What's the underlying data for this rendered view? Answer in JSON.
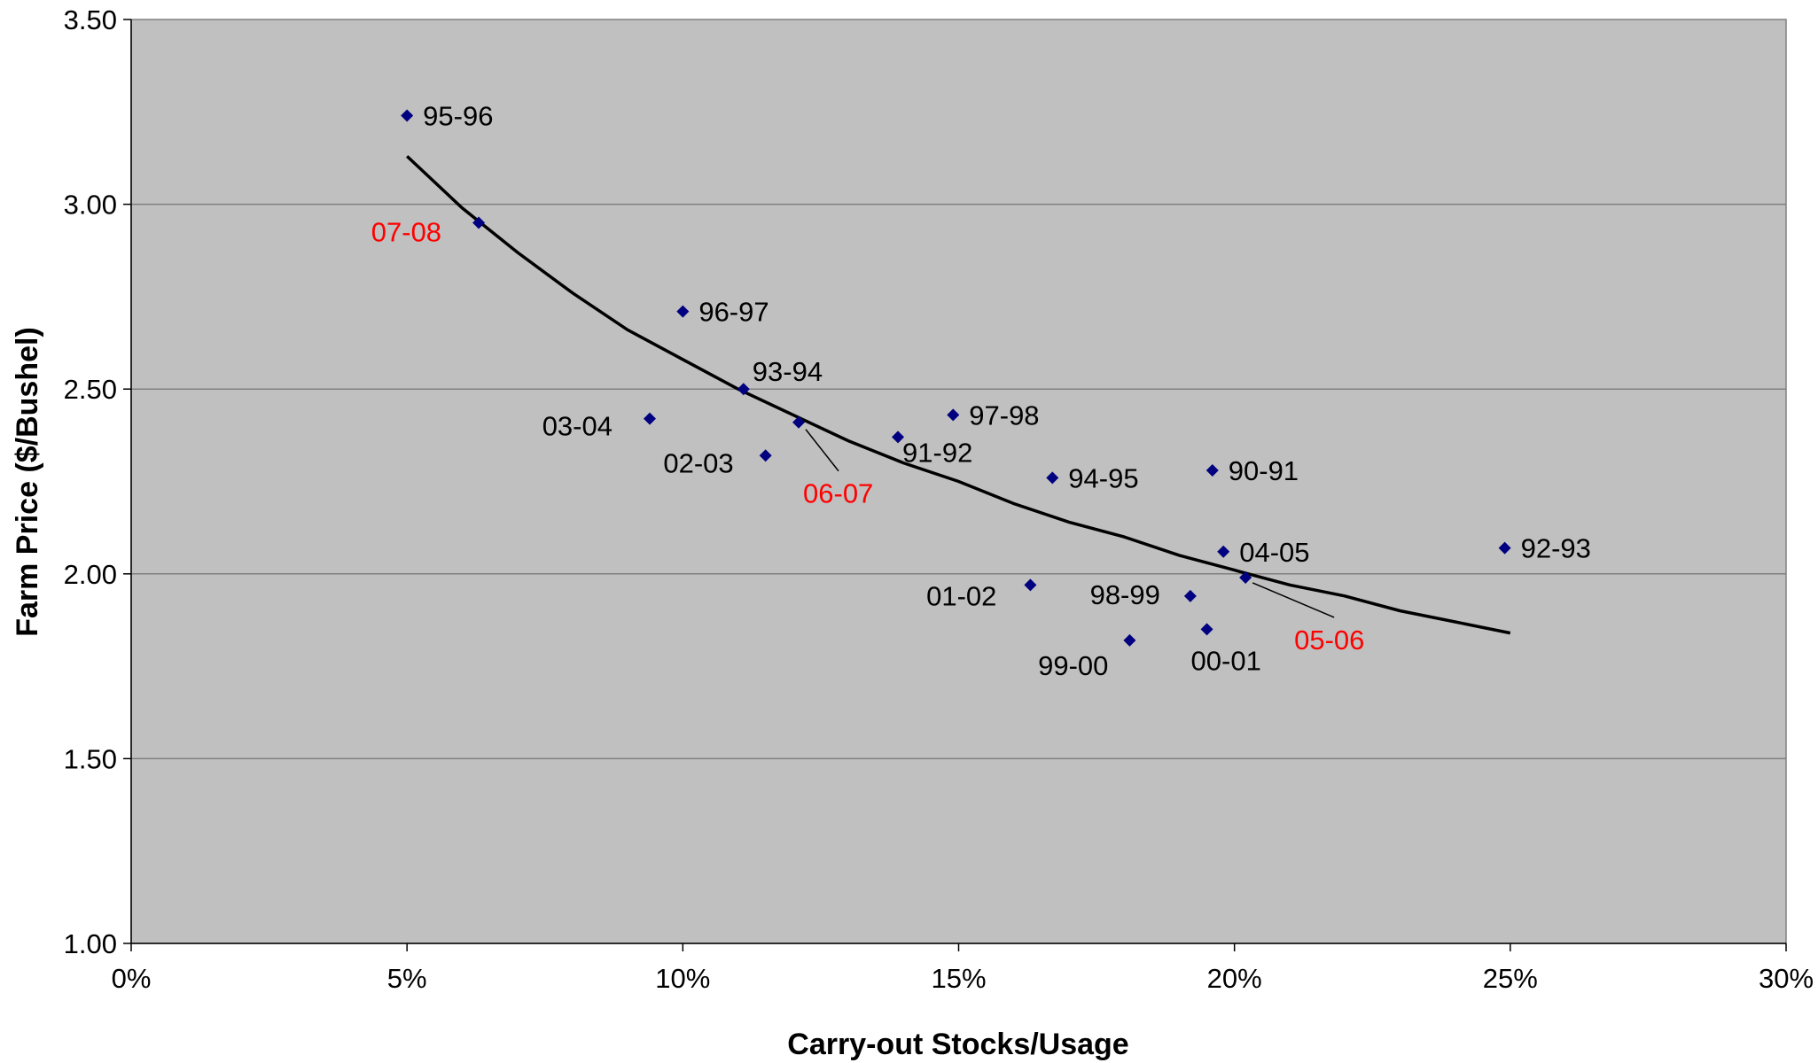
{
  "chart_data": {
    "type": "scatter",
    "title": "",
    "xlabel": "Carry-out Stocks/Usage",
    "ylabel": "Farm Price ($/Bushel)",
    "xlim": [
      0,
      30
    ],
    "ylim": [
      1.0,
      3.5
    ],
    "x_ticks": [
      {
        "value": 0,
        "label": "0%"
      },
      {
        "value": 5,
        "label": "5%"
      },
      {
        "value": 10,
        "label": "10%"
      },
      {
        "value": 15,
        "label": "15%"
      },
      {
        "value": 20,
        "label": "20%"
      },
      {
        "value": 25,
        "label": "25%"
      },
      {
        "value": 30,
        "label": "30%"
      }
    ],
    "y_ticks": [
      {
        "value": 1.0,
        "label": "1.00"
      },
      {
        "value": 1.5,
        "label": "1.50"
      },
      {
        "value": 2.0,
        "label": "2.00"
      },
      {
        "value": 2.5,
        "label": "2.50"
      },
      {
        "value": 3.0,
        "label": "3.00"
      },
      {
        "value": 3.5,
        "label": "3.50"
      }
    ],
    "grid": "horizontal",
    "plot_background": "#C0C0C0",
    "marker_color": "#000080",
    "trend_color": "#000000",
    "highlight_color": "#FF0000",
    "points": [
      {
        "label": "95-96",
        "x": 5.0,
        "y": 3.24,
        "highlight": false
      },
      {
        "label": "07-08",
        "x": 6.3,
        "y": 2.95,
        "highlight": true
      },
      {
        "label": "96-97",
        "x": 10.0,
        "y": 2.71,
        "highlight": false
      },
      {
        "label": "93-94",
        "x": 11.1,
        "y": 2.5,
        "highlight": false
      },
      {
        "label": "03-04",
        "x": 9.4,
        "y": 2.42,
        "highlight": false
      },
      {
        "label": "06-07",
        "x": 12.1,
        "y": 2.41,
        "highlight": true
      },
      {
        "label": "02-03",
        "x": 11.5,
        "y": 2.32,
        "highlight": false
      },
      {
        "label": "91-92",
        "x": 13.9,
        "y": 2.37,
        "highlight": false
      },
      {
        "label": "97-98",
        "x": 14.9,
        "y": 2.43,
        "highlight": false
      },
      {
        "label": "94-95",
        "x": 16.7,
        "y": 2.26,
        "highlight": false
      },
      {
        "label": "90-91",
        "x": 19.6,
        "y": 2.28,
        "highlight": false
      },
      {
        "label": "04-05",
        "x": 19.8,
        "y": 2.06,
        "highlight": false
      },
      {
        "label": "05-06",
        "x": 20.2,
        "y": 1.99,
        "highlight": true
      },
      {
        "label": "92-93",
        "x": 24.9,
        "y": 2.07,
        "highlight": false
      },
      {
        "label": "01-02",
        "x": 16.3,
        "y": 1.97,
        "highlight": false
      },
      {
        "label": "98-99",
        "x": 19.2,
        "y": 1.94,
        "highlight": false
      },
      {
        "label": "00-01",
        "x": 19.5,
        "y": 1.85,
        "highlight": false
      },
      {
        "label": "99-00",
        "x": 18.1,
        "y": 1.82,
        "highlight": false
      }
    ],
    "trendline": {
      "x": [
        5.0,
        6.0,
        7.0,
        8.0,
        9.0,
        10.0,
        11.0,
        12.0,
        13.0,
        14.0,
        15.0,
        16.0,
        17.0,
        18.0,
        19.0,
        20.0,
        21.0,
        22.0,
        23.0,
        24.0,
        25.0
      ],
      "y": [
        3.13,
        2.99,
        2.87,
        2.76,
        2.66,
        2.58,
        2.5,
        2.43,
        2.36,
        2.3,
        2.25,
        2.19,
        2.14,
        2.1,
        2.05,
        2.01,
        1.97,
        1.94,
        1.9,
        1.87,
        1.84
      ]
    }
  }
}
